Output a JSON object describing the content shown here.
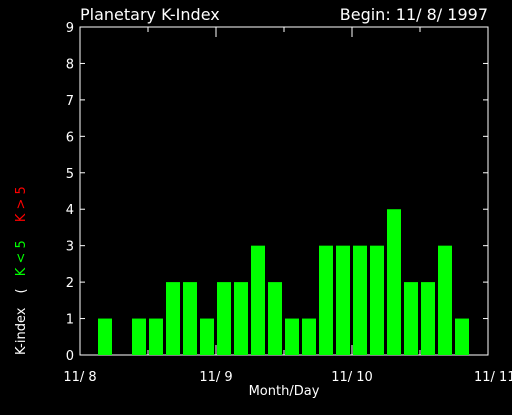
{
  "title_left": "Planetary K-Index",
  "title_right": "Begin: 11/ 8/ 1997",
  "colors": {
    "background": "#000000",
    "axis": "#ffffff",
    "bar_low": "#00ff00",
    "bar_high": "#ff0000",
    "label_low": "#00ff00",
    "label_high": "#ff0000"
  },
  "ylabel": {
    "main": "K-index",
    "open": "(",
    "low": "K < 5",
    "high": "K > 5"
  },
  "chart_data": {
    "type": "bar",
    "title": "Planetary K-Index",
    "xlabel": "Month/Day",
    "ylabel": "K-index",
    "ylim": [
      0,
      9
    ],
    "yticks": [
      "0",
      "1",
      "2",
      "3",
      "4",
      "5",
      "6",
      "7",
      "8",
      "9"
    ],
    "xlim_days": [
      0,
      3
    ],
    "xticks": [
      {
        "day": 0,
        "label": "11/ 8"
      },
      {
        "day": 1,
        "label": "11/ 9"
      },
      {
        "day": 2,
        "label": "11/ 10"
      },
      {
        "day": 3,
        "label": "11/ 11"
      }
    ],
    "bar_interval_hours": 3,
    "values": [
      0,
      1,
      0,
      1,
      1,
      2,
      2,
      1,
      2,
      2,
      3,
      2,
      1,
      1,
      3,
      3,
      3,
      3,
      4,
      2,
      2,
      3,
      1,
      0
    ],
    "grid": false,
    "legend": "none"
  }
}
